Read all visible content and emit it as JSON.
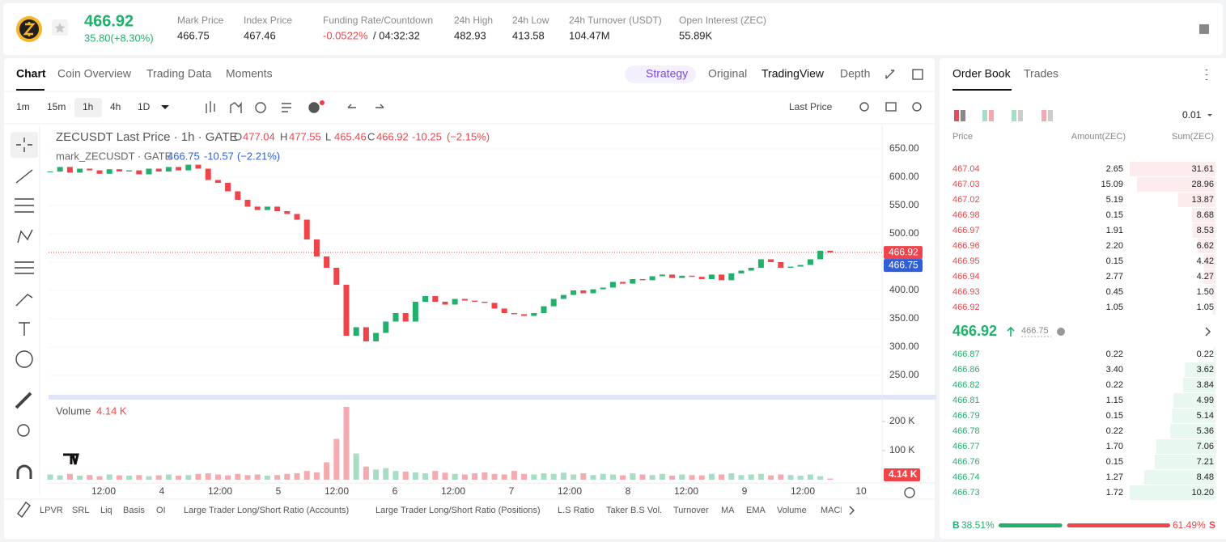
{
  "header": {
    "price": "466.92",
    "change": "35.80(+8.30%)",
    "stats": [
      {
        "label": "Mark Price",
        "value": "466.75"
      },
      {
        "label": "Index Price",
        "value": "467.46"
      },
      {
        "label": "Funding Rate/Countdown",
        "value": "-0.0522%",
        "extra": "/ 04:32:32"
      },
      {
        "label": "24h High",
        "value": "482.93"
      },
      {
        "label": "24h Low",
        "value": "413.58"
      },
      {
        "label": "24h Turnover (USDT)",
        "value": "104.47M"
      },
      {
        "label": "Open Interest (ZEC)",
        "value": "55.89K"
      }
    ]
  },
  "tabs": [
    "Chart",
    "Coin Overview",
    "Trading Data",
    "Moments"
  ],
  "views": [
    "Strategy",
    "Original",
    "TradingView",
    "Depth"
  ],
  "intervals": [
    "1m",
    "15m",
    "1h",
    "4h",
    "1D"
  ],
  "price_type": "Last Price",
  "chart": {
    "legend": {
      "title": "ZECUSDT Last Price · 1h · GATE",
      "ohlc": [
        {
          "k": "O",
          "v": "477.04"
        },
        {
          "k": "H",
          "v": "477.55"
        },
        {
          "k": "L",
          "v": "465.46"
        },
        {
          "k": "C",
          "v": "466.92"
        }
      ],
      "change": "-10.25",
      "change_pct": "(−2.15%)",
      "mark_title": "mark_ZECUSDT · GATE",
      "mark_value": "466.75",
      "mark_change": "-10.57",
      "mark_pct": "(−2.21%)"
    },
    "price_ticks": [
      {
        "value": 650,
        "label": "650.00"
      },
      {
        "value": 600,
        "label": "600.00"
      },
      {
        "value": 550,
        "label": "550.00"
      },
      {
        "value": 500,
        "label": "500.00"
      },
      {
        "value": 450,
        "label": "450.00"
      },
      {
        "value": 400,
        "label": "400.00"
      },
      {
        "value": 350,
        "label": "350.00"
      },
      {
        "value": 300,
        "label": "300.00"
      },
      {
        "value": 250,
        "label": "250.00"
      }
    ],
    "volume_ticks": [
      {
        "value": 200,
        "label": "200 K"
      },
      {
        "value": 100,
        "label": "100 K"
      }
    ],
    "time_labels": [
      "12:00",
      "4",
      "12:00",
      "5",
      "12:00",
      "6",
      "12:00",
      "7",
      "12:00",
      "8",
      "12:00",
      "9",
      "12:00",
      "10"
    ],
    "last_price": {
      "value": 466.92,
      "label": "466.92"
    },
    "mark_price": {
      "value": 466.75,
      "label": "466.75"
    },
    "volume_title": "Volume",
    "volume_value": "4.14 K",
    "volume_tag": "4.14 K",
    "candles": {
      "close": [
        610,
        618,
        608,
        615,
        612,
        606,
        614,
        610,
        612,
        605,
        615,
        610,
        618,
        612,
        622,
        615,
        595,
        590,
        575,
        560,
        548,
        542,
        548,
        540,
        535,
        525,
        490,
        460,
        440,
        410,
        320,
        335,
        310,
        325,
        345,
        360,
        345,
        380,
        390,
        380,
        375,
        385,
        382,
        380,
        378,
        368,
        360,
        358,
        355,
        360,
        372,
        385,
        392,
        400,
        395,
        402,
        405,
        415,
        412,
        420,
        418,
        425,
        428,
        422,
        426,
        424,
        420,
        428,
        418,
        430,
        435,
        440,
        455,
        450,
        440,
        442,
        445,
        455,
        470,
        466.92
      ],
      "volume": [
        18,
        15,
        20,
        14,
        16,
        12,
        18,
        15,
        14,
        16,
        12,
        15,
        18,
        14,
        16,
        20,
        22,
        18,
        15,
        20,
        16,
        18,
        14,
        16,
        20,
        22,
        30,
        25,
        60,
        140,
        250,
        90,
        45,
        35,
        40,
        30,
        28,
        25,
        22,
        30,
        24,
        20,
        18,
        22,
        25,
        20,
        18,
        30,
        20,
        18,
        22,
        20,
        24,
        18,
        22,
        16,
        20,
        18,
        15,
        22,
        18,
        16,
        20,
        14,
        18,
        16,
        15,
        20,
        18,
        22,
        16,
        18,
        20,
        15,
        18,
        16,
        14,
        18,
        12,
        4.14
      ]
    },
    "indicators": [
      "LPVR",
      "SRL",
      "Liq",
      "Basis",
      "OI",
      "Large Trader Long/Short Ratio (Accounts)",
      "Large Trader Long/Short Ratio (Positions)",
      "L.S Ratio",
      "Taker B.S Vol.",
      "Turnover",
      "MA",
      "EMA",
      "Volume",
      "MACD"
    ]
  },
  "order_book": {
    "tabs": [
      "Order Book",
      "Trades"
    ],
    "precision": "0.01",
    "columns": [
      "Price",
      "Amount(ZEC)",
      "Sum(ZEC)"
    ],
    "asks": [
      [
        "467.04",
        "2.65",
        "31.61"
      ],
      [
        "467.03",
        "15.09",
        "28.96"
      ],
      [
        "467.02",
        "5.19",
        "13.87"
      ],
      [
        "466.98",
        "0.15",
        "8.68"
      ],
      [
        "466.97",
        "1.91",
        "8.53"
      ],
      [
        "466.96",
        "2.20",
        "6.62"
      ],
      [
        "466.95",
        "0.15",
        "4.42"
      ],
      [
        "466.94",
        "2.77",
        "4.27"
      ],
      [
        "466.93",
        "0.45",
        "1.50"
      ],
      [
        "466.92",
        "1.05",
        "1.05"
      ]
    ],
    "mid": {
      "price": "466.92",
      "mark": "466.75"
    },
    "bids": [
      [
        "466.87",
        "0.22",
        "0.22"
      ],
      [
        "466.86",
        "3.40",
        "3.62"
      ],
      [
        "466.82",
        "0.22",
        "3.84"
      ],
      [
        "466.81",
        "1.15",
        "4.99"
      ],
      [
        "466.79",
        "0.15",
        "5.14"
      ],
      [
        "466.78",
        "0.22",
        "5.36"
      ],
      [
        "466.77",
        "1.70",
        "7.06"
      ],
      [
        "466.76",
        "0.15",
        "7.21"
      ],
      [
        "466.74",
        "1.27",
        "8.48"
      ],
      [
        "466.73",
        "1.72",
        "10.20"
      ]
    ],
    "ratio": {
      "buy_label": "B",
      "buy_pct": "38.51%",
      "sell_pct": "61.49%",
      "sell_label": "S"
    }
  }
}
